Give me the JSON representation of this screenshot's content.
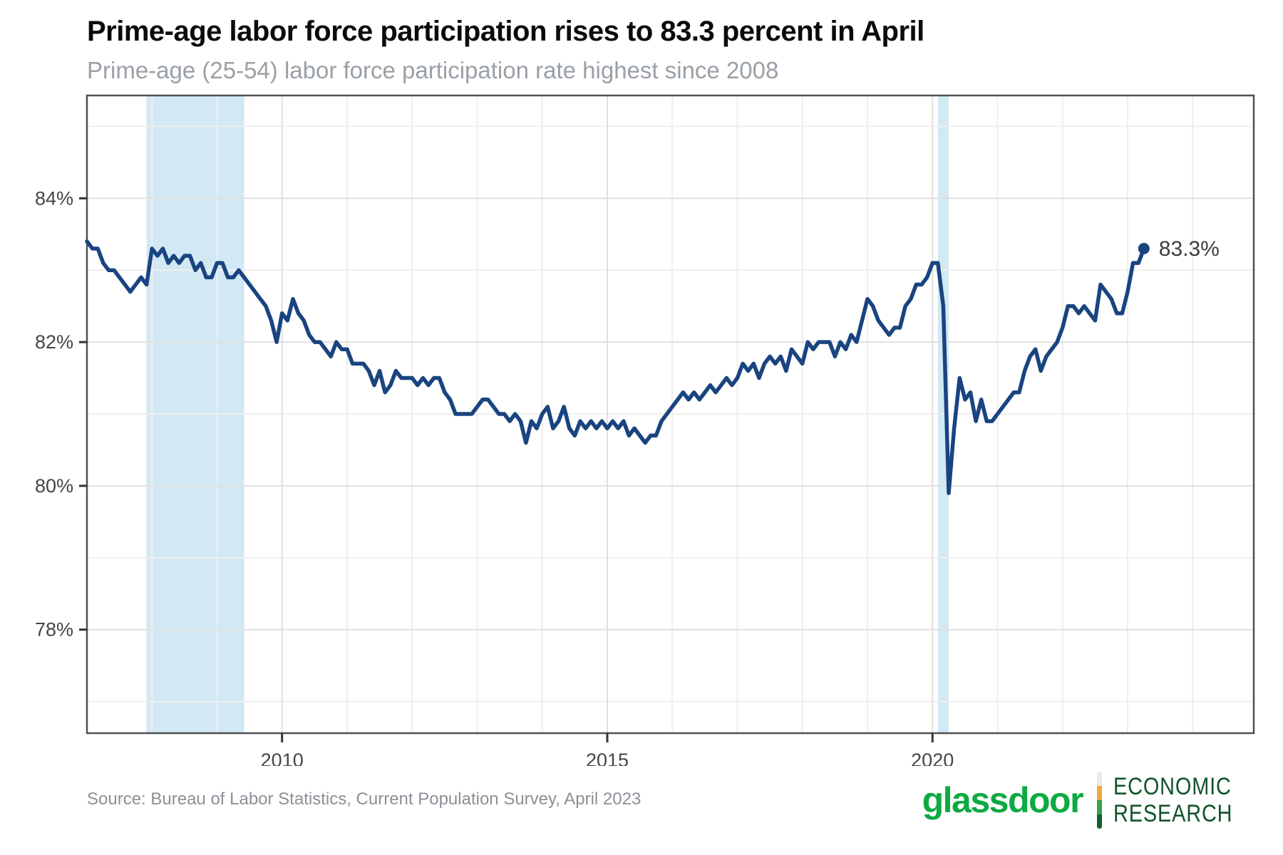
{
  "header": {
    "title": "Prime-age labor force participation rises to 83.3 percent in April",
    "subtitle": "Prime-age (25-54) labor force participation rate highest since 2008"
  },
  "footer": {
    "source": "Source: Bureau of Labor Statistics, Current Population Survey, April 2023",
    "logo": {
      "brand": "glassdoor",
      "division_line1": "ECONOMIC",
      "division_line2": "RESEARCH",
      "brand_color": "#0caa41",
      "division_color": "#12532b"
    }
  },
  "chart_data": {
    "type": "line",
    "title": "Prime-age labor force participation rises to 83.3 percent in April",
    "subtitle": "Prime-age (25-54) labor force participation rate highest since 2008",
    "xlabel": "",
    "ylabel": "",
    "x_range": [
      2007.0,
      2024.94
    ],
    "y_range": [
      76.56,
      85.43
    ],
    "grid": true,
    "legend_position": "none",
    "x_ticks": [
      {
        "value": 2010,
        "label": "2010"
      },
      {
        "value": 2015,
        "label": "2015"
      },
      {
        "value": 2020,
        "label": "2020"
      }
    ],
    "y_ticks": [
      {
        "value": 84,
        "label": "84%"
      },
      {
        "value": 82,
        "label": "82%"
      },
      {
        "value": 80,
        "label": "80%"
      },
      {
        "value": 78,
        "label": "78%"
      }
    ],
    "minor_grid_interval_x_years": 1,
    "minor_grid_interval_y_pct": 1,
    "recession_bands": [
      {
        "from": 2007.917,
        "to": 2009.417
      },
      {
        "from": 2020.083,
        "to": 2020.25
      }
    ],
    "end_label": "83.3%",
    "colors": {
      "line": "#1a4480",
      "recession_band": "#d2e8f4",
      "grid_major": "#e0e0e0",
      "grid_minor": "#efefef",
      "border": "#4f5052",
      "tick": "#333333"
    },
    "series": [
      {
        "name": "Prime-age (25-54) labor force participation rate, percent",
        "color": "#1a4480",
        "frequency": "monthly",
        "start_year": 2007,
        "start_month": 1,
        "end_year": 2023,
        "end_month": 4,
        "values": [
          83.4,
          83.3,
          83.3,
          83.1,
          83.0,
          83.0,
          82.9,
          82.8,
          82.7,
          82.8,
          82.9,
          82.8,
          83.3,
          83.2,
          83.3,
          83.1,
          83.2,
          83.1,
          83.2,
          83.2,
          83.0,
          83.1,
          82.9,
          82.9,
          83.1,
          83.1,
          82.9,
          82.9,
          83.0,
          82.9,
          82.8,
          82.7,
          82.6,
          82.5,
          82.3,
          82.0,
          82.4,
          82.3,
          82.6,
          82.4,
          82.3,
          82.1,
          82.0,
          82.0,
          81.9,
          81.8,
          82.0,
          81.9,
          81.9,
          81.7,
          81.7,
          81.7,
          81.6,
          81.4,
          81.6,
          81.3,
          81.4,
          81.6,
          81.5,
          81.5,
          81.5,
          81.4,
          81.5,
          81.4,
          81.5,
          81.5,
          81.3,
          81.2,
          81.0,
          81.0,
          81.0,
          81.0,
          81.1,
          81.2,
          81.2,
          81.1,
          81.0,
          81.0,
          80.9,
          81.0,
          80.9,
          80.6,
          80.9,
          80.8,
          81.0,
          81.1,
          80.8,
          80.9,
          81.1,
          80.8,
          80.7,
          80.9,
          80.8,
          80.9,
          80.8,
          80.9,
          80.8,
          80.9,
          80.8,
          80.9,
          80.7,
          80.8,
          80.7,
          80.6,
          80.7,
          80.7,
          80.9,
          81.0,
          81.1,
          81.2,
          81.3,
          81.2,
          81.3,
          81.2,
          81.3,
          81.4,
          81.3,
          81.4,
          81.5,
          81.4,
          81.5,
          81.7,
          81.6,
          81.7,
          81.5,
          81.7,
          81.8,
          81.7,
          81.8,
          81.6,
          81.9,
          81.8,
          81.7,
          82.0,
          81.9,
          82.0,
          82.0,
          82.0,
          81.8,
          82.0,
          81.9,
          82.1,
          82.0,
          82.3,
          82.6,
          82.5,
          82.3,
          82.2,
          82.1,
          82.2,
          82.2,
          82.5,
          82.6,
          82.8,
          82.8,
          82.9,
          83.1,
          83.1,
          82.5,
          79.9,
          80.8,
          81.5,
          81.2,
          81.3,
          80.9,
          81.2,
          80.9,
          80.9,
          81.0,
          81.1,
          81.2,
          81.3,
          81.3,
          81.6,
          81.8,
          81.9,
          81.6,
          81.8,
          81.9,
          82.0,
          82.2,
          82.5,
          82.5,
          82.4,
          82.5,
          82.4,
          82.3,
          82.8,
          82.7,
          82.6,
          82.4,
          82.4,
          82.7,
          83.1,
          83.1,
          83.3
        ]
      }
    ]
  }
}
